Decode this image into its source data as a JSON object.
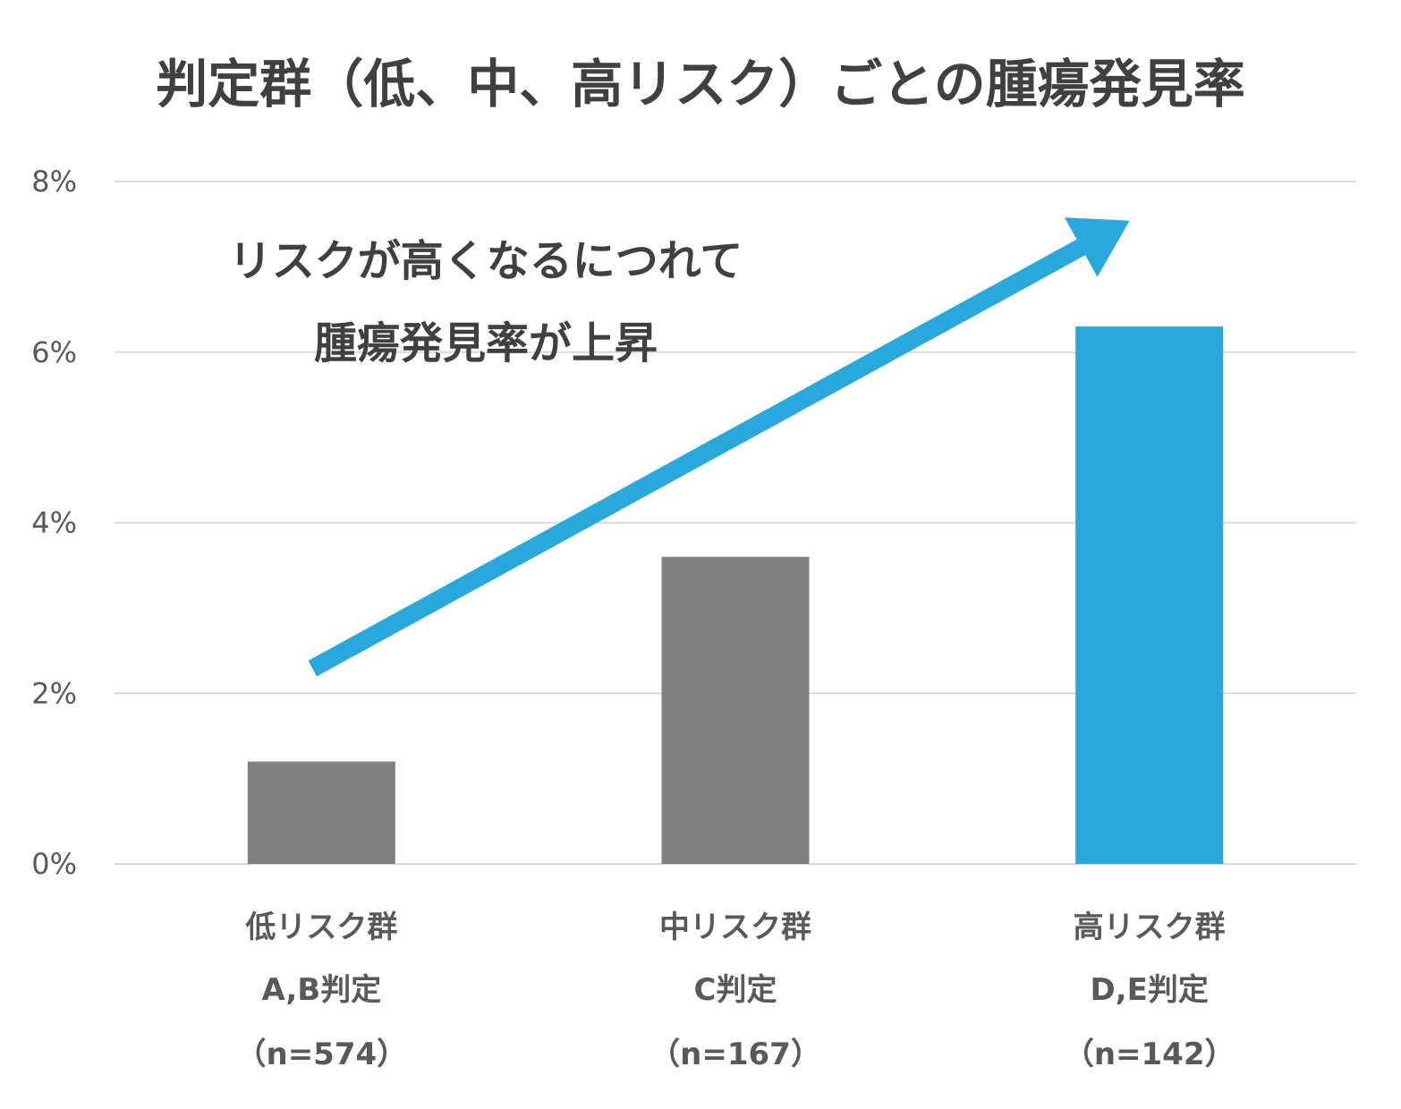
{
  "chart_data": {
    "type": "bar",
    "title": "判定群（低、中、高リスク）ごとの腫瘍発見率",
    "categories": [
      [
        "低リスク群",
        "A,B判定",
        "（n=574）"
      ],
      [
        "中リスク群",
        "C判定",
        "（n=167）"
      ],
      [
        "高リスク群",
        "D,E判定",
        "（n=142）"
      ]
    ],
    "values": [
      1.2,
      3.6,
      6.3
    ],
    "bar_colors": [
      "#808080",
      "#808080",
      "#29a8db"
    ],
    "ylim": [
      0,
      8
    ],
    "yticks": [
      0,
      2,
      4,
      6,
      8
    ],
    "ytick_labels": [
      "0%",
      "2%",
      "4%",
      "6%",
      "8%"
    ],
    "grid": true,
    "legend": "none",
    "annotation": {
      "lines": [
        "リスクが高くなるにつれて",
        "腫瘍発見率が上昇"
      ],
      "arrow_color": "#29a8db",
      "arrow_from": {
        "category_index": 0,
        "y": 2.5
      },
      "arrow_to": {
        "category_index": 2,
        "y": 7.5
      }
    }
  }
}
